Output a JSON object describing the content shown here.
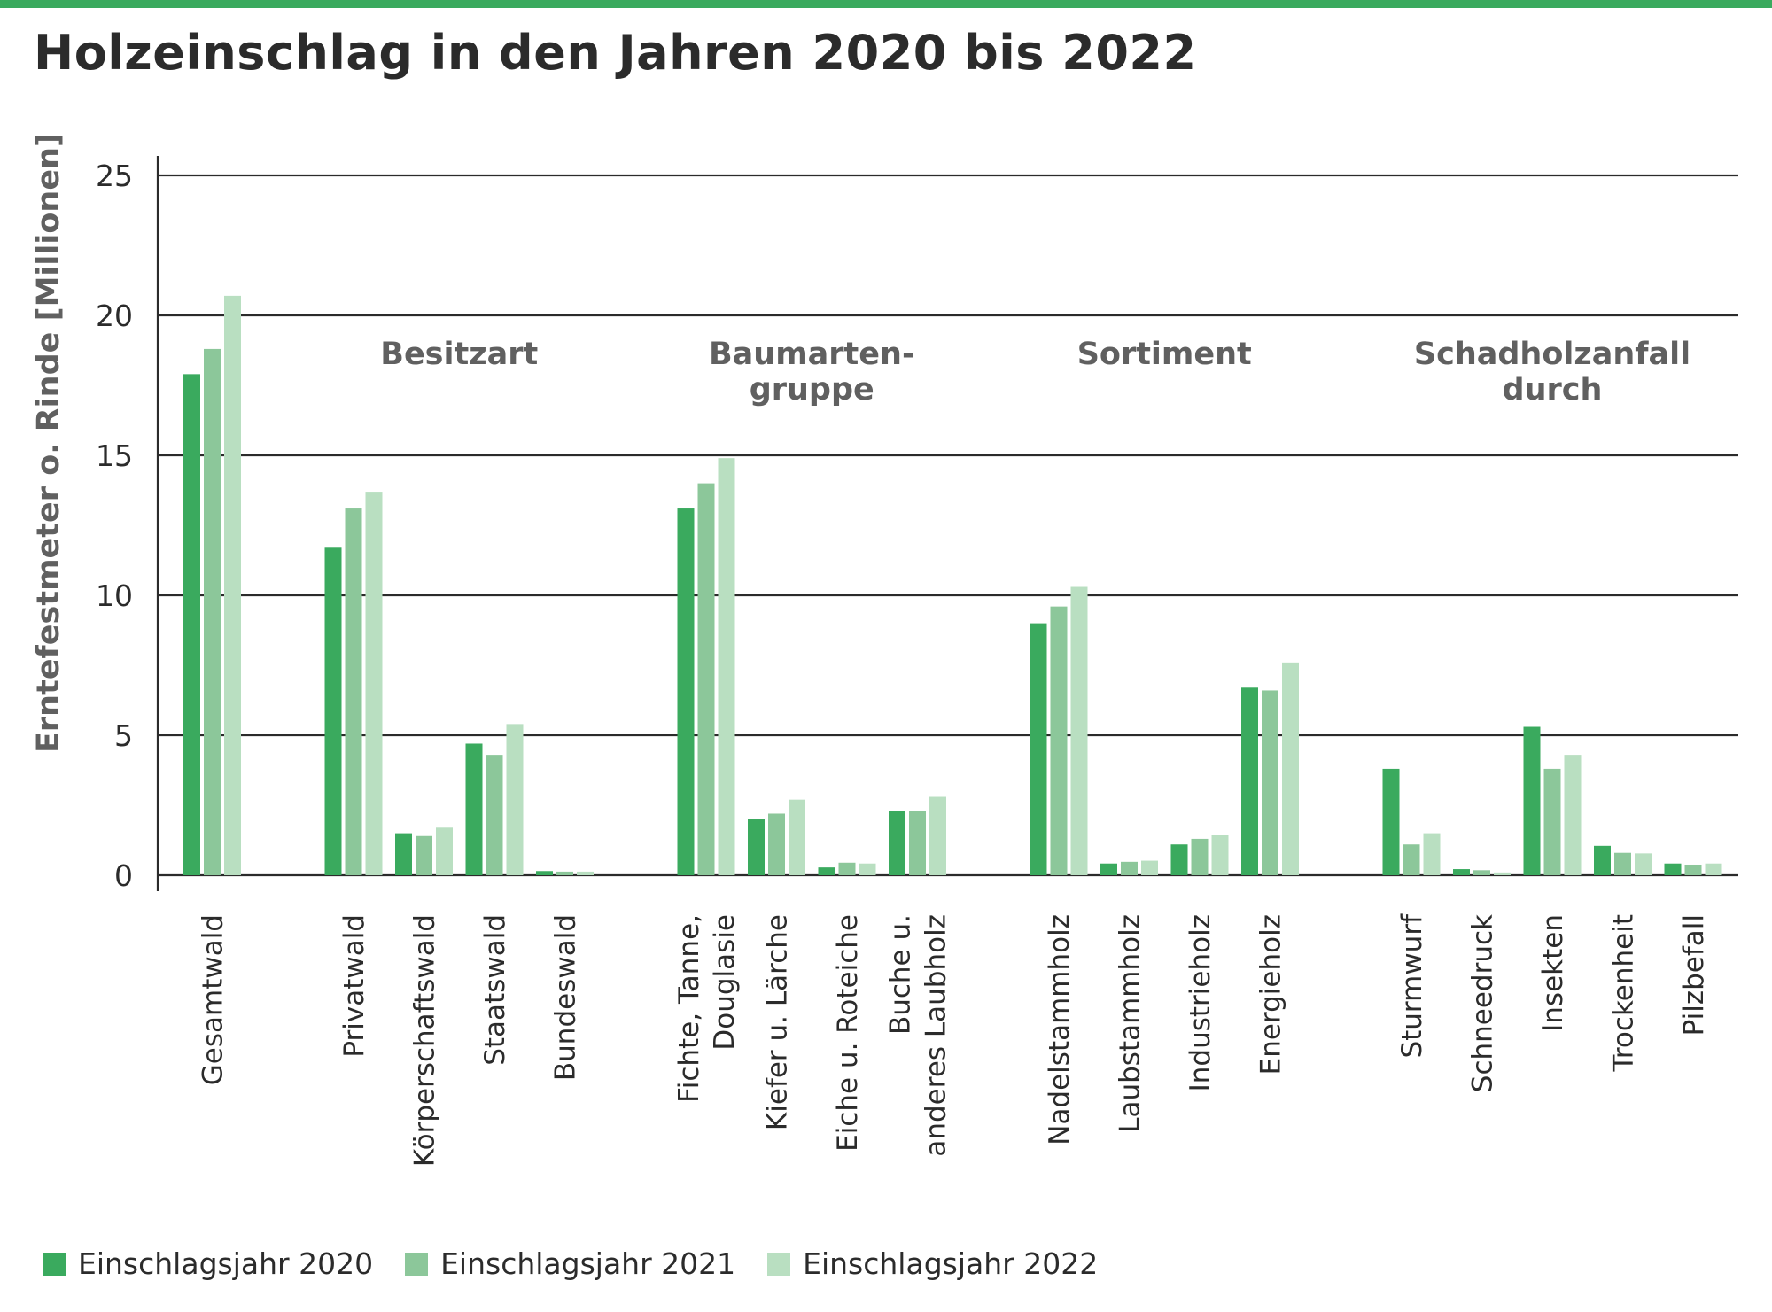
{
  "colors": {
    "accent": "#3aaa5e",
    "series": [
      "#3aaa5e",
      "#8cc79a",
      "#b9dfc1"
    ],
    "grid": "#2b2b2b",
    "text": "#2b2b2b",
    "group_label": "#606060"
  },
  "chart_data": {
    "type": "bar",
    "title": "Holzeinschlag in den Jahren 2020 bis 2022",
    "ylabel": "Erntefestmeter o. Rinde [Millionen]",
    "xlabel": "",
    "ylim": [
      0,
      25
    ],
    "yticks": [
      "0",
      "5",
      "10",
      "15",
      "20",
      "25"
    ],
    "grid": true,
    "legend_position": "bottom-left",
    "series": [
      {
        "name": "Einschlagsjahr 2020"
      },
      {
        "name": "Einschlagsjahr 2021"
      },
      {
        "name": "Einschlagsjahr 2022"
      }
    ],
    "groups": [
      {
        "label": "",
        "categories": [
          {
            "label": [
              "Gesamtwald"
            ],
            "values": [
              17.9,
              18.8,
              20.7
            ]
          }
        ]
      },
      {
        "label": [
          "Besitzart"
        ],
        "categories": [
          {
            "label": [
              "Privatwald"
            ],
            "values": [
              11.7,
              13.1,
              13.7
            ]
          },
          {
            "label": [
              "Körperschaftswald"
            ],
            "values": [
              1.5,
              1.4,
              1.7
            ]
          },
          {
            "label": [
              "Staatswald"
            ],
            "values": [
              4.7,
              4.3,
              5.4
            ]
          },
          {
            "label": [
              "Bundeswald"
            ],
            "values": [
              0.15,
              0.13,
              0.13
            ]
          }
        ]
      },
      {
        "label": [
          "Baumarten-",
          "gruppe"
        ],
        "categories": [
          {
            "label": [
              "Fichte, Tanne,",
              "Douglasie"
            ],
            "values": [
              13.1,
              14.0,
              14.9
            ]
          },
          {
            "label": [
              "Kiefer u. Lärche"
            ],
            "values": [
              2.0,
              2.2,
              2.7
            ]
          },
          {
            "label": [
              "Eiche u. Roteiche"
            ],
            "values": [
              0.28,
              0.45,
              0.42
            ]
          },
          {
            "label": [
              "Buche u.",
              "anderes Laubholz"
            ],
            "values": [
              2.3,
              2.3,
              2.8
            ]
          }
        ]
      },
      {
        "label": [
          "Sortiment"
        ],
        "categories": [
          {
            "label": [
              "Nadelstammholz"
            ],
            "values": [
              9.0,
              9.6,
              10.3
            ]
          },
          {
            "label": [
              "Laubstammholz"
            ],
            "values": [
              0.42,
              0.48,
              0.52
            ]
          },
          {
            "label": [
              "Industrieholz"
            ],
            "values": [
              1.1,
              1.3,
              1.45
            ]
          },
          {
            "label": [
              "Energieholz"
            ],
            "values": [
              6.7,
              6.6,
              7.6
            ]
          }
        ]
      },
      {
        "label": [
          "Schadholzanfall",
          "durch"
        ],
        "categories": [
          {
            "label": [
              "Sturmwurf"
            ],
            "values": [
              3.8,
              1.1,
              1.5
            ]
          },
          {
            "label": [
              "Schneedruck"
            ],
            "values": [
              0.22,
              0.18,
              0.1
            ]
          },
          {
            "label": [
              "Insekten"
            ],
            "values": [
              5.3,
              3.8,
              4.3
            ]
          },
          {
            "label": [
              "Trockenheit"
            ],
            "values": [
              1.05,
              0.8,
              0.78
            ]
          },
          {
            "label": [
              "Pilzbefall"
            ],
            "values": [
              0.42,
              0.38,
              0.42
            ]
          }
        ]
      }
    ]
  }
}
